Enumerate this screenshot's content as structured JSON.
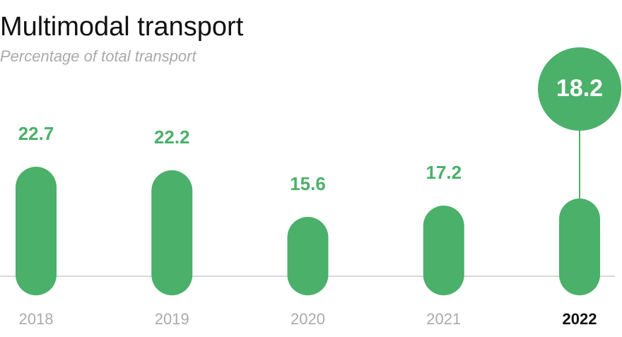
{
  "chart_data": {
    "type": "bar",
    "title": "Multimodal transport",
    "subtitle": "Percentage of total transport",
    "categories": [
      "2018",
      "2019",
      "2020",
      "2021",
      "2022"
    ],
    "values": [
      22.7,
      22.2,
      15.6,
      17.2,
      18.2
    ],
    "color": "#4bb06a",
    "ylim": [
      0,
      25
    ],
    "highlight_index": 4
  }
}
